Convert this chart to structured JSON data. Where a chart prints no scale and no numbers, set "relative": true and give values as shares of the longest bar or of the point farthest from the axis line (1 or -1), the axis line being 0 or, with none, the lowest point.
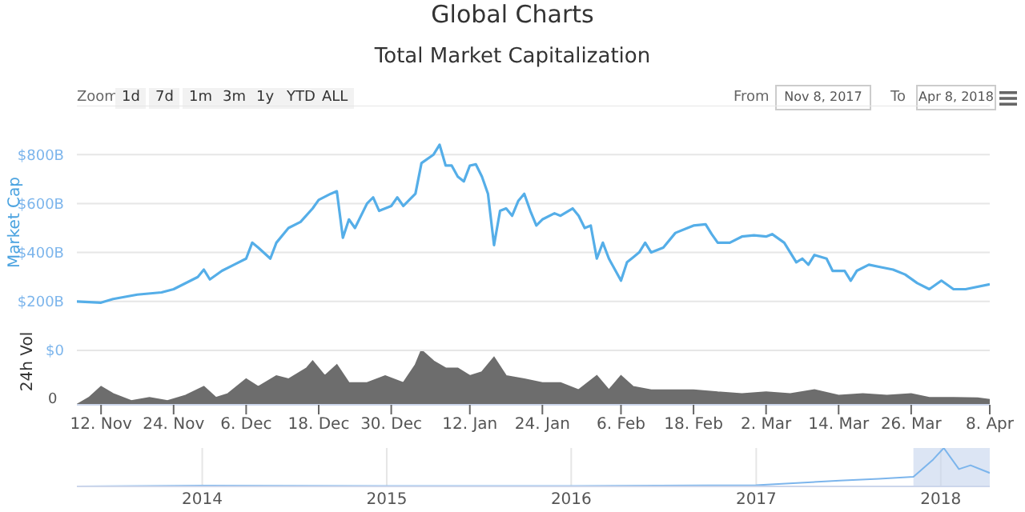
{
  "chart_data": [
    {
      "type": "line",
      "title": "Global Charts",
      "subtitle": "Total Market Capitalization",
      "ylabel": "Market Cap",
      "annotations": [
        "Zoom",
        "1d",
        "7d",
        "1m",
        "3m",
        "1y",
        "YTD",
        "ALL",
        "From",
        "Nov 8, 2017",
        "To",
        "Apr 8, 2018"
      ],
      "x": [
        "2017-11-08",
        "2017-11-12",
        "2017-11-14",
        "2017-11-18",
        "2017-11-22",
        "2017-11-24",
        "2017-11-28",
        "2017-11-29",
        "2017-11-30",
        "2017-12-02",
        "2017-12-04",
        "2017-12-06",
        "2017-12-07",
        "2017-12-08",
        "2017-12-10",
        "2017-12-11",
        "2017-12-13",
        "2017-12-15",
        "2017-12-17",
        "2017-12-18",
        "2017-12-20",
        "2017-12-21",
        "2017-12-22",
        "2017-12-23",
        "2017-12-24",
        "2017-12-26",
        "2017-12-27",
        "2017-12-28",
        "2017-12-30",
        "2017-12-31",
        "2018-01-01",
        "2018-01-03",
        "2018-01-04",
        "2018-01-06",
        "2018-01-07",
        "2018-01-08",
        "2018-01-09",
        "2018-01-10",
        "2018-01-11",
        "2018-01-12",
        "2018-01-13",
        "2018-01-14",
        "2018-01-15",
        "2018-01-16",
        "2018-01-17",
        "2018-01-18",
        "2018-01-19",
        "2018-01-20",
        "2018-01-21",
        "2018-01-22",
        "2018-01-23",
        "2018-01-24",
        "2018-01-26",
        "2018-01-27",
        "2018-01-29",
        "2018-01-30",
        "2018-01-31",
        "2018-02-01",
        "2018-02-02",
        "2018-02-03",
        "2018-02-04",
        "2018-02-05",
        "2018-02-06",
        "2018-02-07",
        "2018-02-08",
        "2018-02-09",
        "2018-02-10",
        "2018-02-11",
        "2018-02-13",
        "2018-02-15",
        "2018-02-17",
        "2018-02-18",
        "2018-02-20",
        "2018-02-21",
        "2018-02-22",
        "2018-02-24",
        "2018-02-26",
        "2018-02-28",
        "2018-03-02",
        "2018-03-03",
        "2018-03-05",
        "2018-03-07",
        "2018-03-08",
        "2018-03-09",
        "2018-03-10",
        "2018-03-12",
        "2018-03-13",
        "2018-03-15",
        "2018-03-16",
        "2018-03-17",
        "2018-03-19",
        "2018-03-21",
        "2018-03-23",
        "2018-03-25",
        "2018-03-27",
        "2018-03-29",
        "2018-03-31",
        "2018-04-02",
        "2018-04-04",
        "2018-04-08"
      ],
      "series": [
        {
          "color": "#55aee8",
          "values": [
            200,
            195,
            210,
            228,
            237,
            250,
            300,
            330,
            290,
            325,
            350,
            375,
            440,
            420,
            375,
            440,
            500,
            525,
            580,
            615,
            640,
            650,
            460,
            535,
            500,
            600,
            625,
            570,
            590,
            625,
            590,
            640,
            765,
            800,
            840,
            755,
            755,
            710,
            690,
            755,
            760,
            710,
            640,
            430,
            570,
            580,
            550,
            610,
            640,
            570,
            510,
            535,
            560,
            550,
            580,
            550,
            500,
            510,
            375,
            440,
            375,
            330,
            285,
            360,
            380,
            400,
            440,
            400,
            420,
            480,
            500,
            510,
            515,
            475,
            440,
            440,
            465,
            470,
            465,
            475,
            440,
            360,
            375,
            350,
            390,
            375,
            325,
            325,
            285,
            325,
            350,
            340,
            330,
            310,
            275,
            250,
            285,
            250,
            250,
            270
          ]
        }
      ],
      "xlim": [
        "2017-11-08",
        "2018-04-08"
      ],
      "ylim": [
        0,
        1000
      ],
      "yticks": [
        {
          "value": 0,
          "label": "$0"
        },
        {
          "value": 200,
          "label": "$200B"
        },
        {
          "value": 400,
          "label": "$400B"
        },
        {
          "value": 600,
          "label": "$600B"
        },
        {
          "value": 800,
          "label": "$800B"
        },
        {
          "value": 1000,
          "label": null
        }
      ],
      "grid": "y",
      "tick_labels": "y",
      "marker": "none",
      "line_style": "solid"
    },
    {
      "type": "area",
      "ylabel": "24h Vol",
      "relative": true,
      "annotations": [
        "0"
      ],
      "x": [
        "2017-11-08",
        "2017-11-10",
        "2017-11-12",
        "2017-11-14",
        "2017-11-17",
        "2017-11-20",
        "2017-11-23",
        "2017-11-26",
        "2017-11-29",
        "2017-12-01",
        "2017-12-03",
        "2017-12-06",
        "2017-12-08",
        "2017-12-11",
        "2017-12-13",
        "2017-12-16",
        "2017-12-17",
        "2017-12-19",
        "2017-12-21",
        "2017-12-23",
        "2017-12-26",
        "2017-12-29",
        "2018-01-01",
        "2018-01-03",
        "2018-01-04",
        "2018-01-06",
        "2018-01-08",
        "2018-01-10",
        "2018-01-12",
        "2018-01-14",
        "2018-01-16",
        "2018-01-18",
        "2018-01-21",
        "2018-01-24",
        "2018-01-27",
        "2018-01-30",
        "2018-02-02",
        "2018-02-04",
        "2018-02-06",
        "2018-02-08",
        "2018-02-11",
        "2018-02-14",
        "2018-02-18",
        "2018-02-22",
        "2018-02-26",
        "2018-03-02",
        "2018-03-06",
        "2018-03-10",
        "2018-03-14",
        "2018-03-18",
        "2018-03-22",
        "2018-03-26",
        "2018-03-29",
        "2018-04-02",
        "2018-04-06",
        "2018-04-08"
      ],
      "series": [
        {
          "color": "#6d6d6d",
          "values": [
            0,
            0.13,
            0.33,
            0.2,
            0.07,
            0.13,
            0.07,
            0.17,
            0.33,
            0.13,
            0.2,
            0.47,
            0.33,
            0.53,
            0.47,
            0.67,
            0.8,
            0.53,
            0.73,
            0.4,
            0.4,
            0.53,
            0.4,
            0.73,
            1,
            0.8,
            0.67,
            0.67,
            0.53,
            0.6,
            0.87,
            0.53,
            0.47,
            0.4,
            0.4,
            0.27,
            0.53,
            0.27,
            0.53,
            0.33,
            0.27,
            0.27,
            0.27,
            0.23,
            0.2,
            0.23,
            0.2,
            0.27,
            0.17,
            0.2,
            0.17,
            0.2,
            0.13,
            0.13,
            0.12,
            0.09
          ]
        }
      ],
      "xlim": [
        "2017-11-08",
        "2018-04-08"
      ],
      "xticks": [
        {
          "value": "2017-11-12",
          "label": "12. Nov"
        },
        {
          "value": "2017-11-24",
          "label": "24. Nov"
        },
        {
          "value": "2017-12-06",
          "label": "6. Dec"
        },
        {
          "value": "2017-12-18",
          "label": "18. Dec"
        },
        {
          "value": "2017-12-30",
          "label": "30. Dec"
        },
        {
          "value": "2018-01-12",
          "label": "12. Jan"
        },
        {
          "value": "2018-01-24",
          "label": "24. Jan"
        },
        {
          "value": "2018-02-06",
          "label": "6. Feb"
        },
        {
          "value": "2018-02-18",
          "label": "18. Feb"
        },
        {
          "value": "2018-03-02",
          "label": "2. Mar"
        },
        {
          "value": "2018-03-14",
          "label": "14. Mar"
        },
        {
          "value": "2018-03-26",
          "label": "26. Mar"
        },
        {
          "value": "2018-04-08",
          "label": "8. Apr"
        }
      ]
    },
    {
      "type": "line",
      "relative": true,
      "x": [
        "2013-04-28",
        "2014-01-01",
        "2015-01-01",
        "2016-01-01",
        "2017-01-01",
        "2017-06-15",
        "2017-09-01",
        "2017-11-08",
        "2017-12-17",
        "2018-01-07",
        "2018-02-06",
        "2018-03-01",
        "2018-04-08"
      ],
      "series": [
        {
          "color": "#7cb5ec",
          "values": [
            0,
            0.02,
            0.01,
            0.01,
            0.03,
            0.15,
            0.2,
            0.25,
            0.7,
            1,
            0.45,
            0.55,
            0.35
          ]
        }
      ],
      "xlim": [
        "2013-04-28",
        "2018-04-08"
      ],
      "xticks": [
        {
          "value": "2014-01-01",
          "label": "2014"
        },
        {
          "value": "2015-01-01",
          "label": "2015"
        },
        {
          "value": "2016-01-01",
          "label": "2016"
        },
        {
          "value": "2017-01-01",
          "label": "2017"
        },
        {
          "value": "2018-01-01",
          "label": "2018"
        }
      ],
      "bands": [
        {
          "axis": "x",
          "from": "2017-11-08",
          "to": "2018-04-08",
          "color": "#c5d3ec"
        }
      ],
      "grid": "x"
    }
  ]
}
